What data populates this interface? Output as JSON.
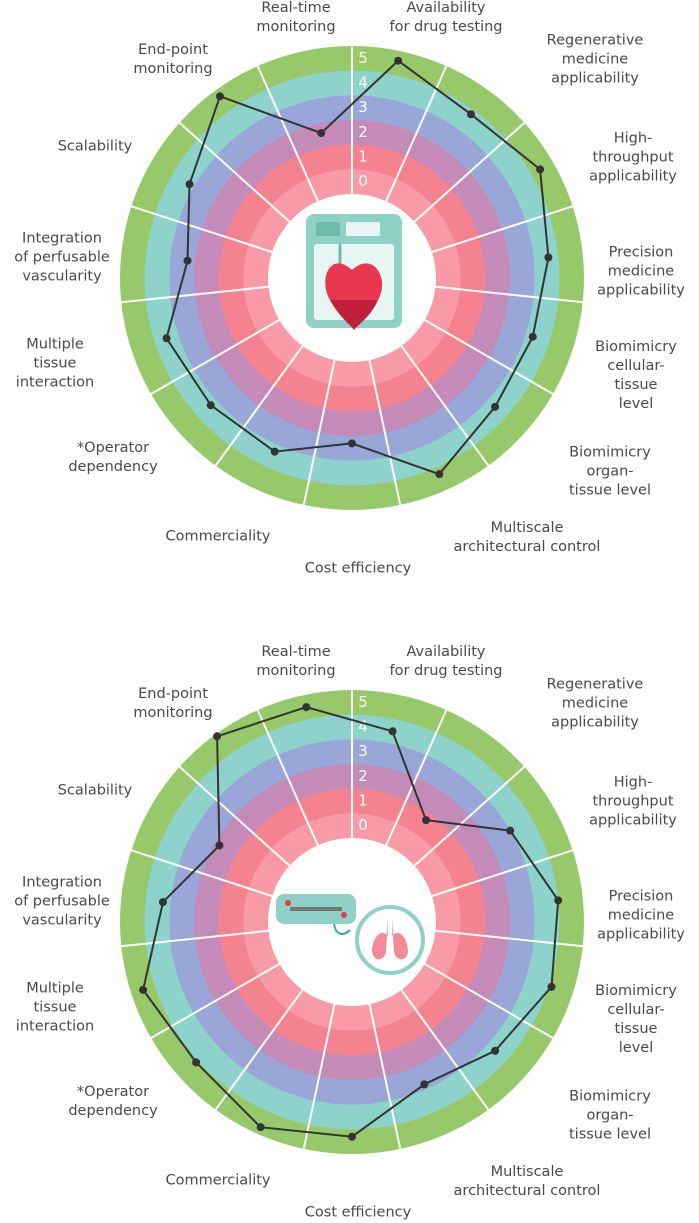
{
  "chart_data": [
    {
      "type": "radar",
      "categories": [
        "Real-time\nmonitoring",
        "Availability\nfor drug testing",
        "Regenerative\nmedicine applicability",
        "High-throughput\napplicability",
        "Precision\nmedicine\napplicability",
        "Biomimicry\ncellular-tissue\nlevel",
        "Biomimicry\norgan-tissue level",
        "Multiscale\narchitectural control",
        "Cost efficiency",
        "Commerciality",
        "*Operator\ndependency",
        "Multiple\ntissue\ninteraction",
        "Integration\nof perfusable\nvascularity",
        "Scalability",
        "End-point\nmonitoring"
      ],
      "series": [
        {
          "color": "#333333",
          "values": [
            2.1,
            5.1,
            4.3,
            4.9,
            4.1,
            3.8,
            3.9,
            4.8,
            2.8,
            3.8,
            3.8,
            4.0,
            2.8,
            3.7,
            5.2
          ]
        }
      ],
      "rlim": [
        -0.5,
        5.5
      ],
      "rticks": [
        0,
        1,
        2,
        3,
        4,
        5
      ],
      "band_colors": [
        "#f89ba6",
        "#f4838f",
        "#c48ab8",
        "#98a6d8",
        "#8ed3cb",
        "#97c96b"
      ]
    },
    {
      "type": "radar",
      "categories": [
        "Real-time\nmonitoring",
        "Availability\nfor drug testing",
        "Regenerative\nmedicine applicability",
        "High-throughput\napplicability",
        "Precision\nmedicine\napplicability",
        "Biomimicry\ncellular-tissue\nlevel",
        "Biomimicry\norgan-tissue level",
        "Multiscale\narchitectural control",
        "Cost efficiency",
        "Commerciality",
        "*Operator\ndependency",
        "Multiple\ntissue\ninteraction",
        "Integration\nof perfusable\nvascularity",
        "Scalability",
        "End-point\nmonitoring"
      ],
      "series": [
        {
          "color": "#333333",
          "values": [
            5.0,
            4.0,
            1.2,
            3.5,
            4.5,
            4.6,
            3.9,
            3.3,
            4.8,
            5.2,
            4.6,
            5.0,
            3.8,
            2.3,
            5.4
          ]
        }
      ],
      "rlim": [
        -0.5,
        5.5
      ],
      "rticks": [
        0,
        1,
        2,
        3,
        4,
        5
      ],
      "band_colors": [
        "#f89ba6",
        "#f4838f",
        "#c48ab8",
        "#98a6d8",
        "#8ed3cb",
        "#97c96b"
      ]
    }
  ]
}
